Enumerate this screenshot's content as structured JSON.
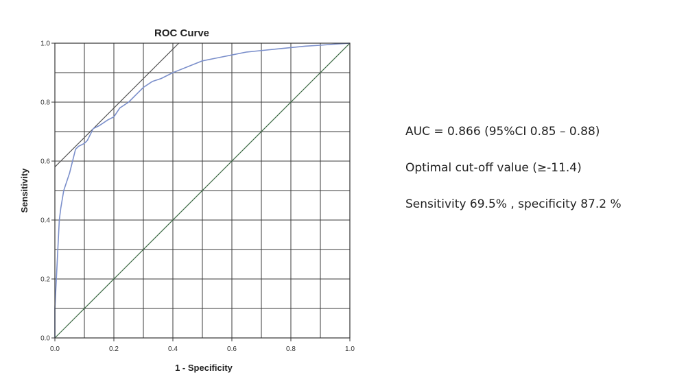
{
  "chart_data": {
    "type": "line",
    "title": "ROC Curve",
    "xlabel": "1 - Specificity",
    "ylabel": "Sensitivity",
    "xlim": [
      0.0,
      1.0
    ],
    "ylim": [
      0.0,
      1.0
    ],
    "grid": true,
    "x_ticks": [
      "0.0",
      "0.2",
      "0.4",
      "0.6",
      "0.8",
      "1.0"
    ],
    "y_ticks": [
      "0.0",
      "0.2",
      "0.4",
      "0.6",
      "0.8",
      "1.0"
    ],
    "series": [
      {
        "role": "roc",
        "color": "#7b8fcb",
        "x": [
          0.0,
          0.0,
          0.005,
          0.01,
          0.015,
          0.02,
          0.03,
          0.04,
          0.05,
          0.06,
          0.07,
          0.08,
          0.1,
          0.11,
          0.12,
          0.13,
          0.15,
          0.18,
          0.2,
          0.22,
          0.25,
          0.28,
          0.3,
          0.33,
          0.36,
          0.4,
          0.45,
          0.5,
          0.55,
          0.6,
          0.65,
          0.7,
          0.75,
          0.8,
          0.85,
          0.9,
          0.95,
          1.0
        ],
        "y": [
          0.0,
          0.1,
          0.2,
          0.3,
          0.4,
          0.44,
          0.5,
          0.53,
          0.56,
          0.6,
          0.64,
          0.65,
          0.66,
          0.67,
          0.69,
          0.71,
          0.72,
          0.74,
          0.75,
          0.78,
          0.8,
          0.83,
          0.85,
          0.87,
          0.88,
          0.9,
          0.92,
          0.94,
          0.95,
          0.96,
          0.97,
          0.975,
          0.98,
          0.985,
          0.99,
          0.993,
          0.997,
          1.0
        ]
      },
      {
        "role": "reference",
        "color": "#3d6b45",
        "x": [
          0.0,
          1.0
        ],
        "y": [
          0.0,
          1.0
        ]
      },
      {
        "role": "tangent",
        "color": "#555555",
        "x": [
          0.0,
          0.42
        ],
        "y": [
          0.58,
          1.0
        ]
      }
    ]
  },
  "annotations": {
    "auc": "AUC = 0.866 (95%CI 0.85 – 0.88)",
    "cutoff": "Optimal cut-off value (≥-11.4)",
    "sens_spec": "Sensitivity 69.5% , specificity 87.2 %"
  }
}
